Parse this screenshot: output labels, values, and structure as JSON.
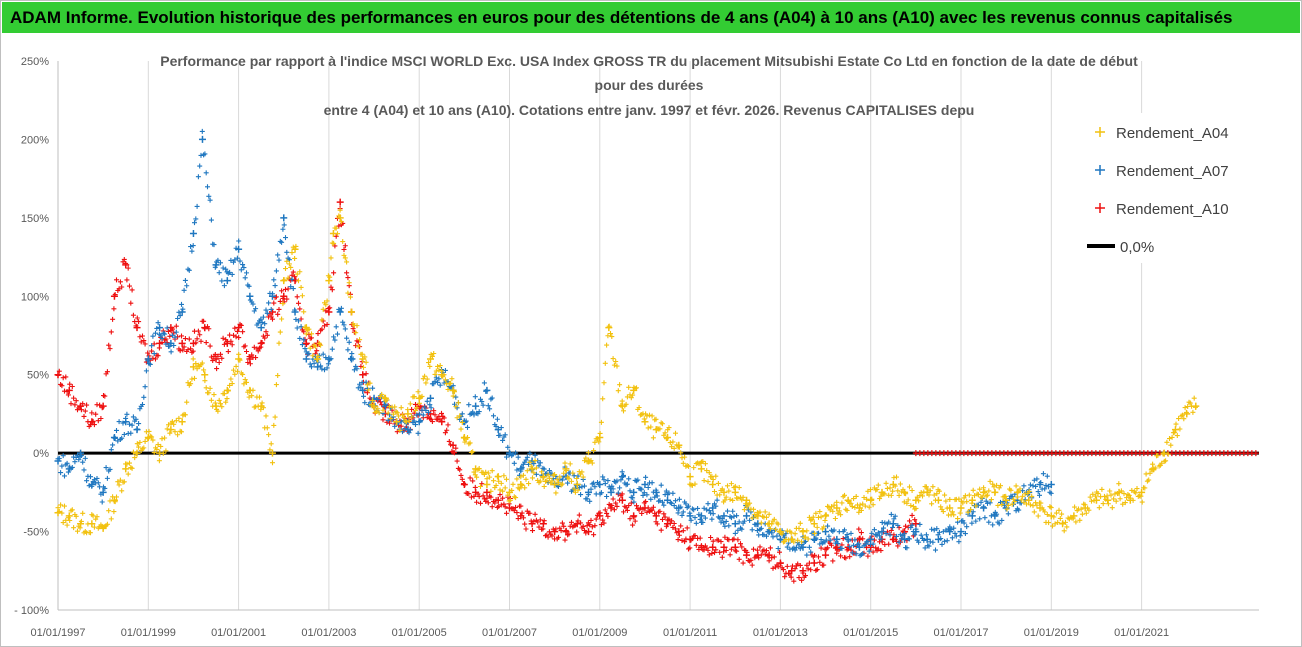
{
  "banner": {
    "text": "ADAM Informe. Evolution historique des performances en euros pour des détentions de 4 ans (A04) à 10 ans (A10) avec les revenus connus capitalisés"
  },
  "colors": {
    "banner_bg": "#33cc33",
    "A04": "#f2c10f",
    "A07": "#1f77c0",
    "A10": "#ee1010",
    "zero_line": "#000000"
  },
  "chart_data": {
    "type": "scatter",
    "title_lines": [
      "Performance par rapport à l'indice MSCI WORLD Exc. USA Index GROSS TR  du placement Mitsubishi Estate Co Ltd en fonction de la date de début",
      "pour des durées",
      "entre 4 (A04) et 10 ans (A10). Cotations entre janv. 1997 et févr. 2026. Revenus CAPITALISES depu"
    ],
    "xlabel": "",
    "ylabel": "",
    "x_range": [
      1997.0,
      2023.6
    ],
    "ylim": [
      -100,
      250
    ],
    "y_ticks": [
      250,
      200,
      150,
      100,
      50,
      0,
      -50,
      -100
    ],
    "y_tick_labels": [
      "250%",
      "200%",
      "150%",
      "100%",
      "50%",
      "0%",
      "-50%",
      "- 100%"
    ],
    "x_ticks": [
      1997,
      1999,
      2001,
      2003,
      2005,
      2007,
      2009,
      2011,
      2013,
      2015,
      2017,
      2019,
      2021
    ],
    "x_tick_labels": [
      "01/01/1997",
      "01/01/1999",
      "01/01/2001",
      "01/01/2003",
      "01/01/2005",
      "01/01/2007",
      "01/01/2009",
      "01/01/2011",
      "01/01/2013",
      "01/01/2015",
      "01/01/2017",
      "01/01/2019",
      "01/01/2021"
    ],
    "grid": "vertical",
    "legend_position": "right",
    "series": [
      {
        "name": "Rendement_A04",
        "marker": "+",
        "color": "#f2c10f",
        "x": [
          1997.0,
          1997.25,
          1997.5,
          1997.75,
          1998.0,
          1998.25,
          1998.5,
          1998.75,
          1999.0,
          1999.25,
          1999.5,
          1999.75,
          2000.0,
          2000.25,
          2000.5,
          2000.75,
          2001.0,
          2001.25,
          2001.5,
          2001.75,
          2002.0,
          2002.25,
          2002.5,
          2002.75,
          2003.0,
          2003.1,
          2003.25,
          2003.5,
          2003.75,
          2004.0,
          2004.25,
          2004.5,
          2004.75,
          2005.0,
          2005.25,
          2005.5,
          2005.75,
          2006.0,
          2006.25,
          2006.5,
          2006.75,
          2007.0,
          2007.25,
          2007.5,
          2007.75,
          2008.0,
          2008.25,
          2008.5,
          2008.75,
          2009.0,
          2009.2,
          2009.5,
          2009.75,
          2010.0,
          2010.25,
          2010.5,
          2010.75,
          2011.0,
          2011.25,
          2011.5,
          2011.75,
          2012.0,
          2012.25,
          2012.5,
          2012.75,
          2013.0,
          2013.25,
          2013.5,
          2013.75,
          2014.0,
          2014.25,
          2014.5,
          2014.75,
          2015.0,
          2015.25,
          2015.5,
          2015.75,
          2016.0,
          2016.25,
          2016.5,
          2016.75,
          2017.0,
          2017.25,
          2017.5,
          2017.75,
          2018.0,
          2018.25,
          2018.5,
          2018.75,
          2019.0,
          2019.25,
          2019.5,
          2019.75,
          2020.0,
          2020.25,
          2020.5,
          2020.75,
          2021.0,
          2021.25,
          2021.5,
          2021.75,
          2022.0,
          2022.2
        ],
        "y": [
          -38,
          -40,
          -45,
          -45,
          -48,
          -30,
          -10,
          0,
          10,
          0,
          15,
          20,
          55,
          50,
          30,
          40,
          60,
          40,
          30,
          0,
          110,
          130,
          80,
          60,
          110,
          140,
          150,
          90,
          60,
          30,
          35,
          20,
          25,
          35,
          60,
          50,
          40,
          10,
          -10,
          -20,
          -15,
          -25,
          -20,
          -10,
          -15,
          -20,
          -10,
          -20,
          -5,
          10,
          80,
          30,
          40,
          20,
          15,
          10,
          5,
          -15,
          -10,
          -20,
          -25,
          -25,
          -30,
          -40,
          -45,
          -50,
          -55,
          -50,
          -45,
          -40,
          -35,
          -30,
          -35,
          -30,
          -25,
          -20,
          -25,
          -30,
          -25,
          -30,
          -35,
          -35,
          -30,
          -25,
          -25,
          -30,
          -25,
          -30,
          -35,
          -40,
          -45,
          -40,
          -35,
          -30,
          -30,
          -25,
          -30,
          -25,
          -10,
          0,
          15,
          25,
          30
        ]
      },
      {
        "name": "Rendement_A07",
        "marker": "+",
        "color": "#1f77c0",
        "x": [
          1997.0,
          1997.25,
          1997.5,
          1997.75,
          1998.0,
          1998.25,
          1998.5,
          1998.75,
          1999.0,
          1999.25,
          1999.5,
          1999.75,
          2000.0,
          2000.2,
          2000.5,
          2000.75,
          2001.0,
          2001.25,
          2001.5,
          2001.75,
          2002.0,
          2002.25,
          2002.5,
          2002.75,
          2003.0,
          2003.25,
          2003.5,
          2003.75,
          2004.0,
          2004.25,
          2004.5,
          2004.75,
          2005.0,
          2005.25,
          2005.5,
          2005.75,
          2006.0,
          2006.25,
          2006.5,
          2006.75,
          2007.0,
          2007.25,
          2007.5,
          2007.75,
          2008.0,
          2008.25,
          2008.5,
          2008.75,
          2009.0,
          2009.25,
          2009.5,
          2009.75,
          2010.0,
          2010.25,
          2010.5,
          2010.75,
          2011.0,
          2011.25,
          2011.5,
          2011.75,
          2012.0,
          2012.25,
          2012.5,
          2012.75,
          2013.0,
          2013.25,
          2013.5,
          2013.75,
          2014.0,
          2014.25,
          2014.5,
          2014.75,
          2015.0,
          2015.25,
          2015.5,
          2015.75,
          2016.0,
          2016.25,
          2016.5,
          2016.75,
          2017.0,
          2017.25,
          2017.5,
          2017.75,
          2018.0,
          2018.25,
          2018.5,
          2018.75,
          2019.0
        ],
        "y": [
          -5,
          -10,
          0,
          -20,
          -25,
          10,
          20,
          15,
          60,
          80,
          70,
          90,
          140,
          200,
          120,
          110,
          130,
          100,
          80,
          100,
          150,
          90,
          60,
          55,
          60,
          90,
          60,
          40,
          35,
          30,
          20,
          15,
          20,
          35,
          50,
          40,
          20,
          30,
          40,
          15,
          0,
          -10,
          -5,
          -15,
          -20,
          -15,
          -20,
          -25,
          -20,
          -25,
          -15,
          -25,
          -20,
          -25,
          -30,
          -35,
          -40,
          -40,
          -35,
          -40,
          -45,
          -40,
          -45,
          -50,
          -55,
          -55,
          -60,
          -55,
          -50,
          -55,
          -55,
          -60,
          -55,
          -50,
          -45,
          -55,
          -50,
          -55,
          -55,
          -50,
          -50,
          -40,
          -35,
          -40,
          -35,
          -30,
          -25,
          -20,
          -20
        ]
      },
      {
        "name": "Rendement_A10",
        "marker": "+",
        "color": "#ee1010",
        "x": [
          1997.0,
          1997.25,
          1997.5,
          1997.75,
          1998.0,
          1998.25,
          1998.5,
          1998.75,
          1999.0,
          1999.25,
          1999.5,
          1999.75,
          2000.0,
          2000.25,
          2000.5,
          2000.75,
          2001.0,
          2001.25,
          2001.5,
          2001.75,
          2002.0,
          2002.25,
          2002.5,
          2002.75,
          2003.0,
          2003.25,
          2003.5,
          2003.75,
          2004.0,
          2004.25,
          2004.5,
          2004.75,
          2005.0,
          2005.25,
          2005.5,
          2005.75,
          2006.0,
          2006.25,
          2006.5,
          2006.75,
          2007.0,
          2007.25,
          2007.5,
          2007.75,
          2008.0,
          2008.25,
          2008.5,
          2008.75,
          2009.0,
          2009.25,
          2009.5,
          2009.75,
          2010.0,
          2010.25,
          2010.5,
          2010.75,
          2011.0,
          2011.25,
          2011.5,
          2011.75,
          2012.0,
          2012.25,
          2012.5,
          2012.75,
          2013.0,
          2013.25,
          2013.5,
          2013.75,
          2014.0,
          2014.25,
          2014.5,
          2014.75,
          2015.0,
          2015.25,
          2015.5,
          2015.75,
          2016.0
        ],
        "y": [
          50,
          40,
          30,
          20,
          30,
          100,
          120,
          80,
          60,
          70,
          80,
          70,
          70,
          80,
          60,
          70,
          80,
          60,
          70,
          90,
          100,
          110,
          70,
          70,
          90,
          160,
          90,
          50,
          30,
          25,
          20,
          20,
          30,
          25,
          20,
          5,
          -20,
          -25,
          -25,
          -30,
          -35,
          -40,
          -45,
          -45,
          -50,
          -50,
          -45,
          -50,
          -40,
          -35,
          -30,
          -40,
          -35,
          -40,
          -45,
          -50,
          -55,
          -60,
          -60,
          -60,
          -60,
          -65,
          -65,
          -65,
          -70,
          -75,
          -75,
          -70,
          -65,
          -60,
          -60,
          -55,
          -60,
          -55,
          -55,
          -50,
          -45
        ]
      }
    ],
    "reference_line": {
      "name": "0,0%",
      "value": 0
    },
    "flat_zero_segment": {
      "series": "Rendement_A10",
      "x_start": 2016.0,
      "x_end": 2023.6,
      "value": 0
    }
  }
}
